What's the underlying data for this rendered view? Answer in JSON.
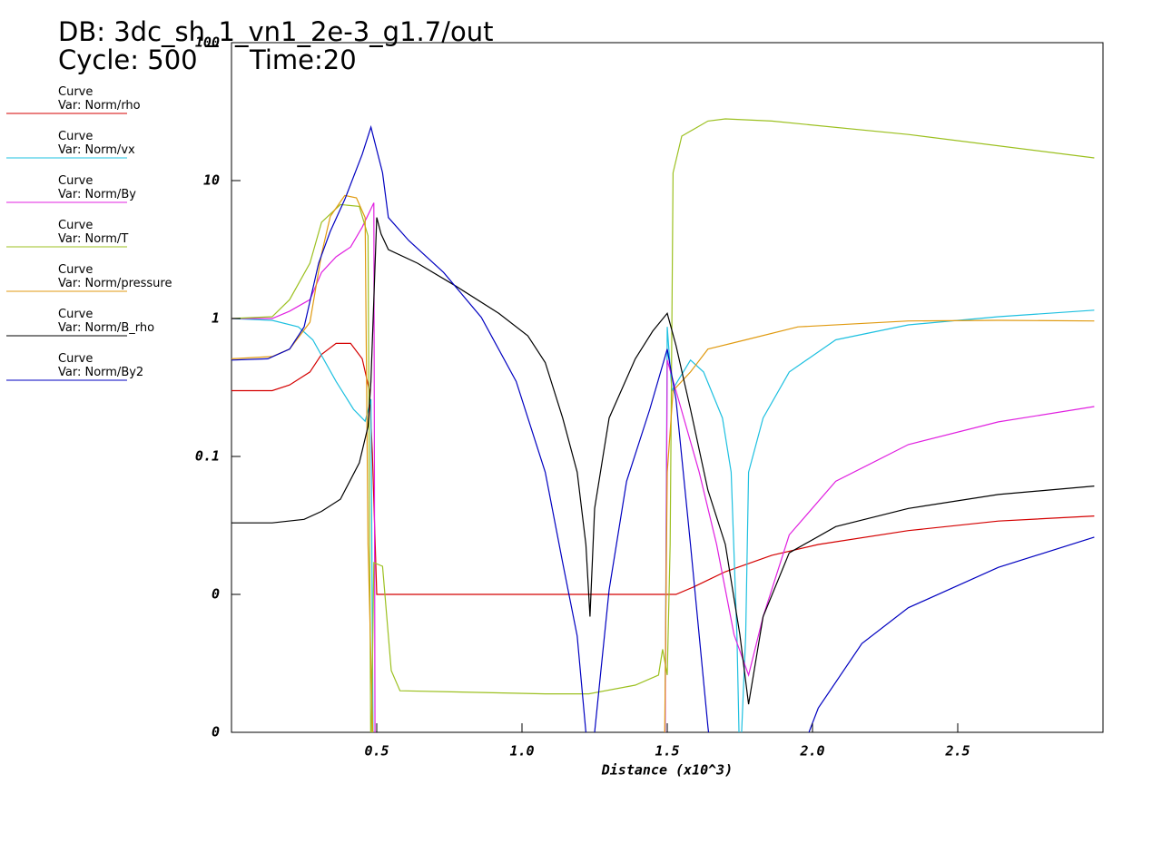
{
  "chart_data": {
    "type": "line",
    "title": "DB: 3dc_sh_1_vn1_2e-3_g1.7/out",
    "cycle": "Cycle: 500",
    "time": "Time:20",
    "x_label": "Distance (x10^3)",
    "xlim": [
      0,
      3
    ],
    "xticks": [
      0.5,
      {
        "value": 1,
        "label": "1.0"
      },
      1.5,
      {
        "value": 2,
        "label": "2.0"
      },
      2.5
    ],
    "ylim": [
      0.001,
      100
    ],
    "yticks": [
      100,
      10,
      1,
      0.1,
      {
        "value": 0.01,
        "label": "0"
      },
      {
        "value": 0.001,
        "label": "0"
      }
    ],
    "log_y": true,
    "series": [
      {
        "curve_label": "Curve",
        "name": "Var: Norm/rho",
        "color": "#d40000",
        "x": [
          0,
          0.14,
          0.2,
          0.27,
          0.31,
          0.36,
          0.41,
          0.45,
          0.475,
          0.485,
          0.5,
          1.53,
          1.59,
          1.7,
          1.86,
          2.02,
          2.33,
          2.64,
          2.97
        ],
        "values": [
          0.3,
          0.3,
          0.33,
          0.41,
          0.55,
          0.66,
          0.66,
          0.51,
          0.3,
          0.105,
          0.01,
          0.01,
          0.0113,
          0.0146,
          0.0192,
          0.023,
          0.029,
          0.034,
          0.037
        ]
      },
      {
        "curve_label": "Curve",
        "name": "Var: Norm/vx",
        "color": "#1ec0e0",
        "x": [
          0,
          0.14,
          0.23,
          0.28,
          0.36,
          0.42,
          0.46,
          0.48,
          0.49,
          1.49,
          1.5,
          1.516,
          1.58,
          1.625,
          1.69,
          1.72,
          1.74,
          1.75,
          1.77,
          1.78,
          1.83,
          1.92,
          2.08,
          2.33,
          2.64,
          2.97
        ],
        "values": [
          1,
          0.97,
          0.87,
          0.7,
          0.35,
          0.22,
          0.18,
          0.26,
          0.0001,
          0.0001,
          0.87,
          0.3,
          0.5,
          0.41,
          0.19,
          0.077,
          0.005,
          0.0005,
          0.005,
          0.077,
          0.19,
          0.41,
          0.7,
          0.9,
          1.03,
          1.15
        ]
      },
      {
        "curve_label": "Curve",
        "name": "Var: Norm/By",
        "color": "#e020e0",
        "x": [
          0,
          0.14,
          0.2,
          0.27,
          0.31,
          0.36,
          0.41,
          0.45,
          0.49,
          0.495,
          1.49,
          1.5,
          1.53,
          1.61,
          1.67,
          1.73,
          1.78,
          1.83,
          1.92,
          2.08,
          2.33,
          2.64,
          2.97
        ],
        "values": [
          1,
          1,
          1.13,
          1.37,
          2.16,
          2.8,
          3.3,
          4.6,
          6.9,
          0.0001,
          0.0001,
          0.5,
          0.3,
          0.077,
          0.023,
          0.0051,
          0.0026,
          0.0069,
          0.027,
          0.066,
          0.122,
          0.178,
          0.23
        ]
      },
      {
        "curve_label": "Curve",
        "name": "Var: Norm/T",
        "color": "#9cc020",
        "x": [
          0,
          0.14,
          0.2,
          0.27,
          0.31,
          0.375,
          0.44,
          0.47,
          0.48,
          0.49,
          0.52,
          0.55,
          0.58,
          1.08,
          1.23,
          1.39,
          1.47,
          1.484,
          1.5,
          1.51,
          1.52,
          1.55,
          1.64,
          1.7,
          1.86,
          2.33,
          2.97
        ],
        "values": [
          1,
          1.03,
          1.37,
          2.52,
          4.98,
          6.7,
          6.5,
          3.97,
          0.0005,
          0.017,
          0.016,
          0.0028,
          0.002,
          0.0019,
          0.0019,
          0.0022,
          0.0026,
          0.004,
          0.0026,
          0.023,
          11.4,
          21,
          27,
          28,
          27,
          21.6,
          14.6
        ]
      },
      {
        "curve_label": "Curve",
        "name": "Var: Norm/pressure",
        "color": "#e09a10",
        "x": [
          0,
          0.14,
          0.2,
          0.27,
          0.31,
          0.34,
          0.39,
          0.43,
          0.46,
          0.47,
          0.49,
          1.49,
          1.5,
          1.52,
          1.58,
          1.64,
          1.77,
          1.95,
          2.33,
          2.64,
          2.97
        ],
        "values": [
          0.51,
          0.53,
          0.6,
          0.94,
          2.93,
          5.5,
          7.8,
          7.5,
          5.4,
          0.023,
          0.0005,
          0.0005,
          0.077,
          0.3,
          0.41,
          0.6,
          0.7,
          0.87,
          0.96,
          0.97,
          0.96
        ]
      },
      {
        "curve_label": "Curve",
        "name": "Var: Norm/B_rho",
        "color": "#000000",
        "x": [
          0,
          0.14,
          0.25,
          0.31,
          0.375,
          0.44,
          0.47,
          0.48,
          0.5,
          0.515,
          0.54,
          0.64,
          0.77,
          0.92,
          1.02,
          1.08,
          1.14,
          1.19,
          1.22,
          1.234,
          1.25,
          1.3,
          1.39,
          1.45,
          1.5,
          1.53,
          1.58,
          1.64,
          1.7,
          1.75,
          1.78,
          1.83,
          1.92,
          2.08,
          2.33,
          2.64,
          2.97
        ],
        "values": [
          0.033,
          0.033,
          0.035,
          0.04,
          0.049,
          0.09,
          0.165,
          0.35,
          5.4,
          4.1,
          3.16,
          2.52,
          1.73,
          1.09,
          0.75,
          0.48,
          0.19,
          0.077,
          0.023,
          0.0069,
          0.042,
          0.19,
          0.51,
          0.81,
          1.09,
          0.64,
          0.22,
          0.057,
          0.023,
          0.0051,
          0.0016,
          0.0069,
          0.02,
          0.031,
          0.042,
          0.053,
          0.061
        ]
      },
      {
        "curve_label": "Curve",
        "name": "Var: Norm/By2",
        "color": "#0000c0",
        "x": [
          0,
          0.125,
          0.2,
          0.25,
          0.3,
          0.34,
          0.39,
          0.45,
          0.48,
          0.52,
          0.54,
          0.61,
          0.73,
          0.86,
          0.98,
          1.08,
          1.14,
          1.19,
          1.22,
          1.234,
          1.25,
          1.3,
          1.36,
          1.44,
          1.5,
          1.53,
          1.58,
          1.64,
          1.67,
          1.97,
          2.02,
          2.17,
          2.33,
          2.64,
          2.97
        ],
        "values": [
          0.5,
          0.51,
          0.6,
          0.87,
          2.52,
          4.28,
          7.3,
          15.5,
          24.4,
          11.4,
          5.4,
          3.68,
          2.16,
          1.02,
          0.35,
          0.077,
          0.017,
          0.005,
          0.001,
          0.0003,
          0.001,
          0.0108,
          0.066,
          0.22,
          0.6,
          0.26,
          0.023,
          0.0011,
          0.0003,
          0.0008,
          0.0015,
          0.0044,
          0.008,
          0.0157,
          0.026
        ]
      }
    ]
  }
}
